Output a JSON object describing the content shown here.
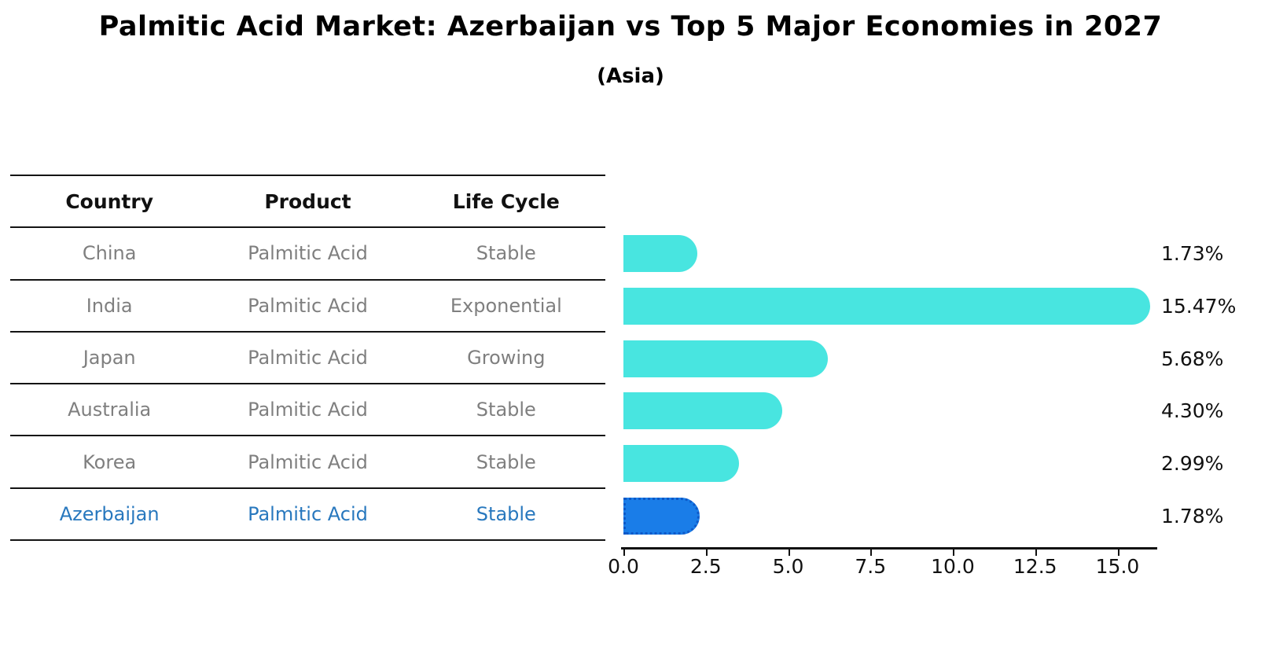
{
  "title": "Palmitic Acid Market: Azerbaijan vs Top 5 Major Economies in 2027",
  "subtitle": "(Asia)",
  "table": {
    "headers": [
      "Country",
      "Product",
      "Life Cycle"
    ],
    "rows": [
      {
        "country": "China",
        "product": "Palmitic Acid",
        "life_cycle": "Stable"
      },
      {
        "country": "India",
        "product": "Palmitic Acid",
        "life_cycle": "Exponential"
      },
      {
        "country": "Japan",
        "product": "Palmitic Acid",
        "life_cycle": "Growing"
      },
      {
        "country": "Australia",
        "product": "Palmitic Acid",
        "life_cycle": "Stable"
      },
      {
        "country": "Korea",
        "product": "Palmitic Acid",
        "life_cycle": "Stable"
      },
      {
        "country": "Azerbaijan",
        "product": "Palmitic Acid",
        "life_cycle": "Stable"
      }
    ],
    "highlight_row": "Azerbaijan"
  },
  "chart_data": {
    "type": "bar",
    "orientation": "horizontal",
    "title": "Palmitic Acid Market: Azerbaijan vs Top 5 Major Economies in 2027",
    "subtitle": "(Asia)",
    "categories": [
      "China",
      "India",
      "Japan",
      "Australia",
      "Korea",
      "Azerbaijan"
    ],
    "values": [
      1.73,
      15.47,
      5.68,
      4.3,
      2.99,
      1.78
    ],
    "value_labels": [
      "1.73%",
      "15.47%",
      "5.68%",
      "4.30%",
      "2.99%",
      "1.78%"
    ],
    "highlight_index": 5,
    "xlim": [
      0,
      16.2
    ],
    "xticks": [
      0.0,
      2.5,
      5.0,
      7.5,
      10.0,
      12.5,
      15.0
    ],
    "xtick_labels": [
      "0.0",
      "2.5",
      "5.0",
      "7.5",
      "10.0",
      "12.5",
      "15.0"
    ],
    "grid": false,
    "legend": null,
    "colors": {
      "bar": "#48E5E0",
      "highlight_bar": "#1A7DE8",
      "highlight_border": "#0E59C8",
      "highlight_text": "#2878BE",
      "row_text": "#7F7F7F",
      "header_text": "#111111",
      "value_text": "#111111",
      "axis": "#111111"
    }
  }
}
